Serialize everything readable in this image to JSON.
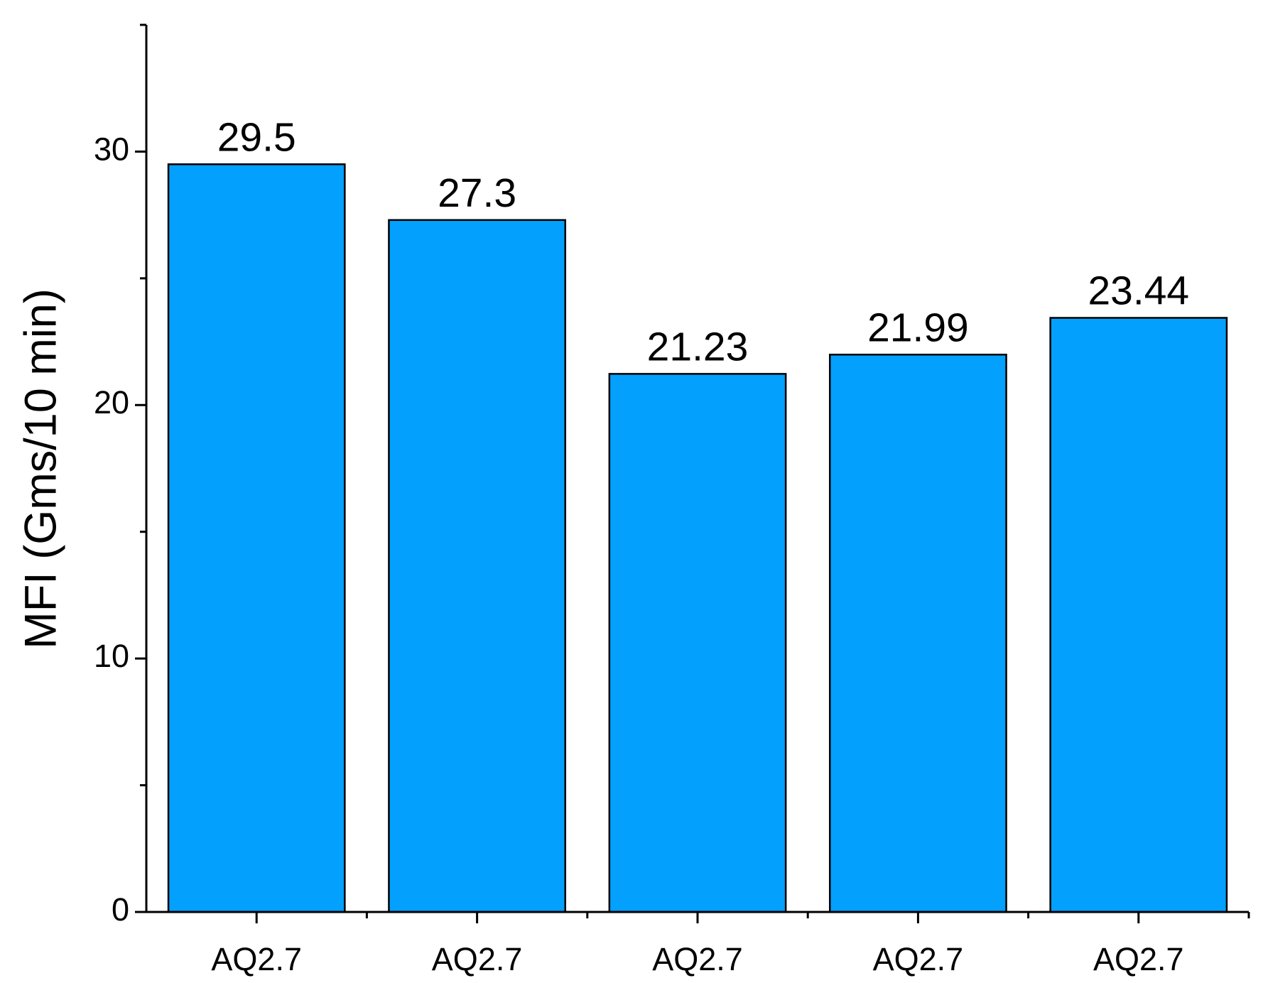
{
  "chart_data": {
    "type": "bar",
    "y_axis_label": "MFI (Gms/10 min)",
    "categories": [
      "AQ2.7",
      "AQ2.7",
      "AQ2.7",
      "AQ2.7",
      "AQ2.7"
    ],
    "values": [
      29.5,
      27.3,
      21.23,
      21.99,
      23.44
    ],
    "color": "#03a0fd",
    "ylim": [
      0,
      35
    ],
    "yticks": [
      0,
      10,
      20,
      30
    ],
    "minor_yticks": [
      5,
      15,
      25,
      35
    ],
    "grid": false
  }
}
